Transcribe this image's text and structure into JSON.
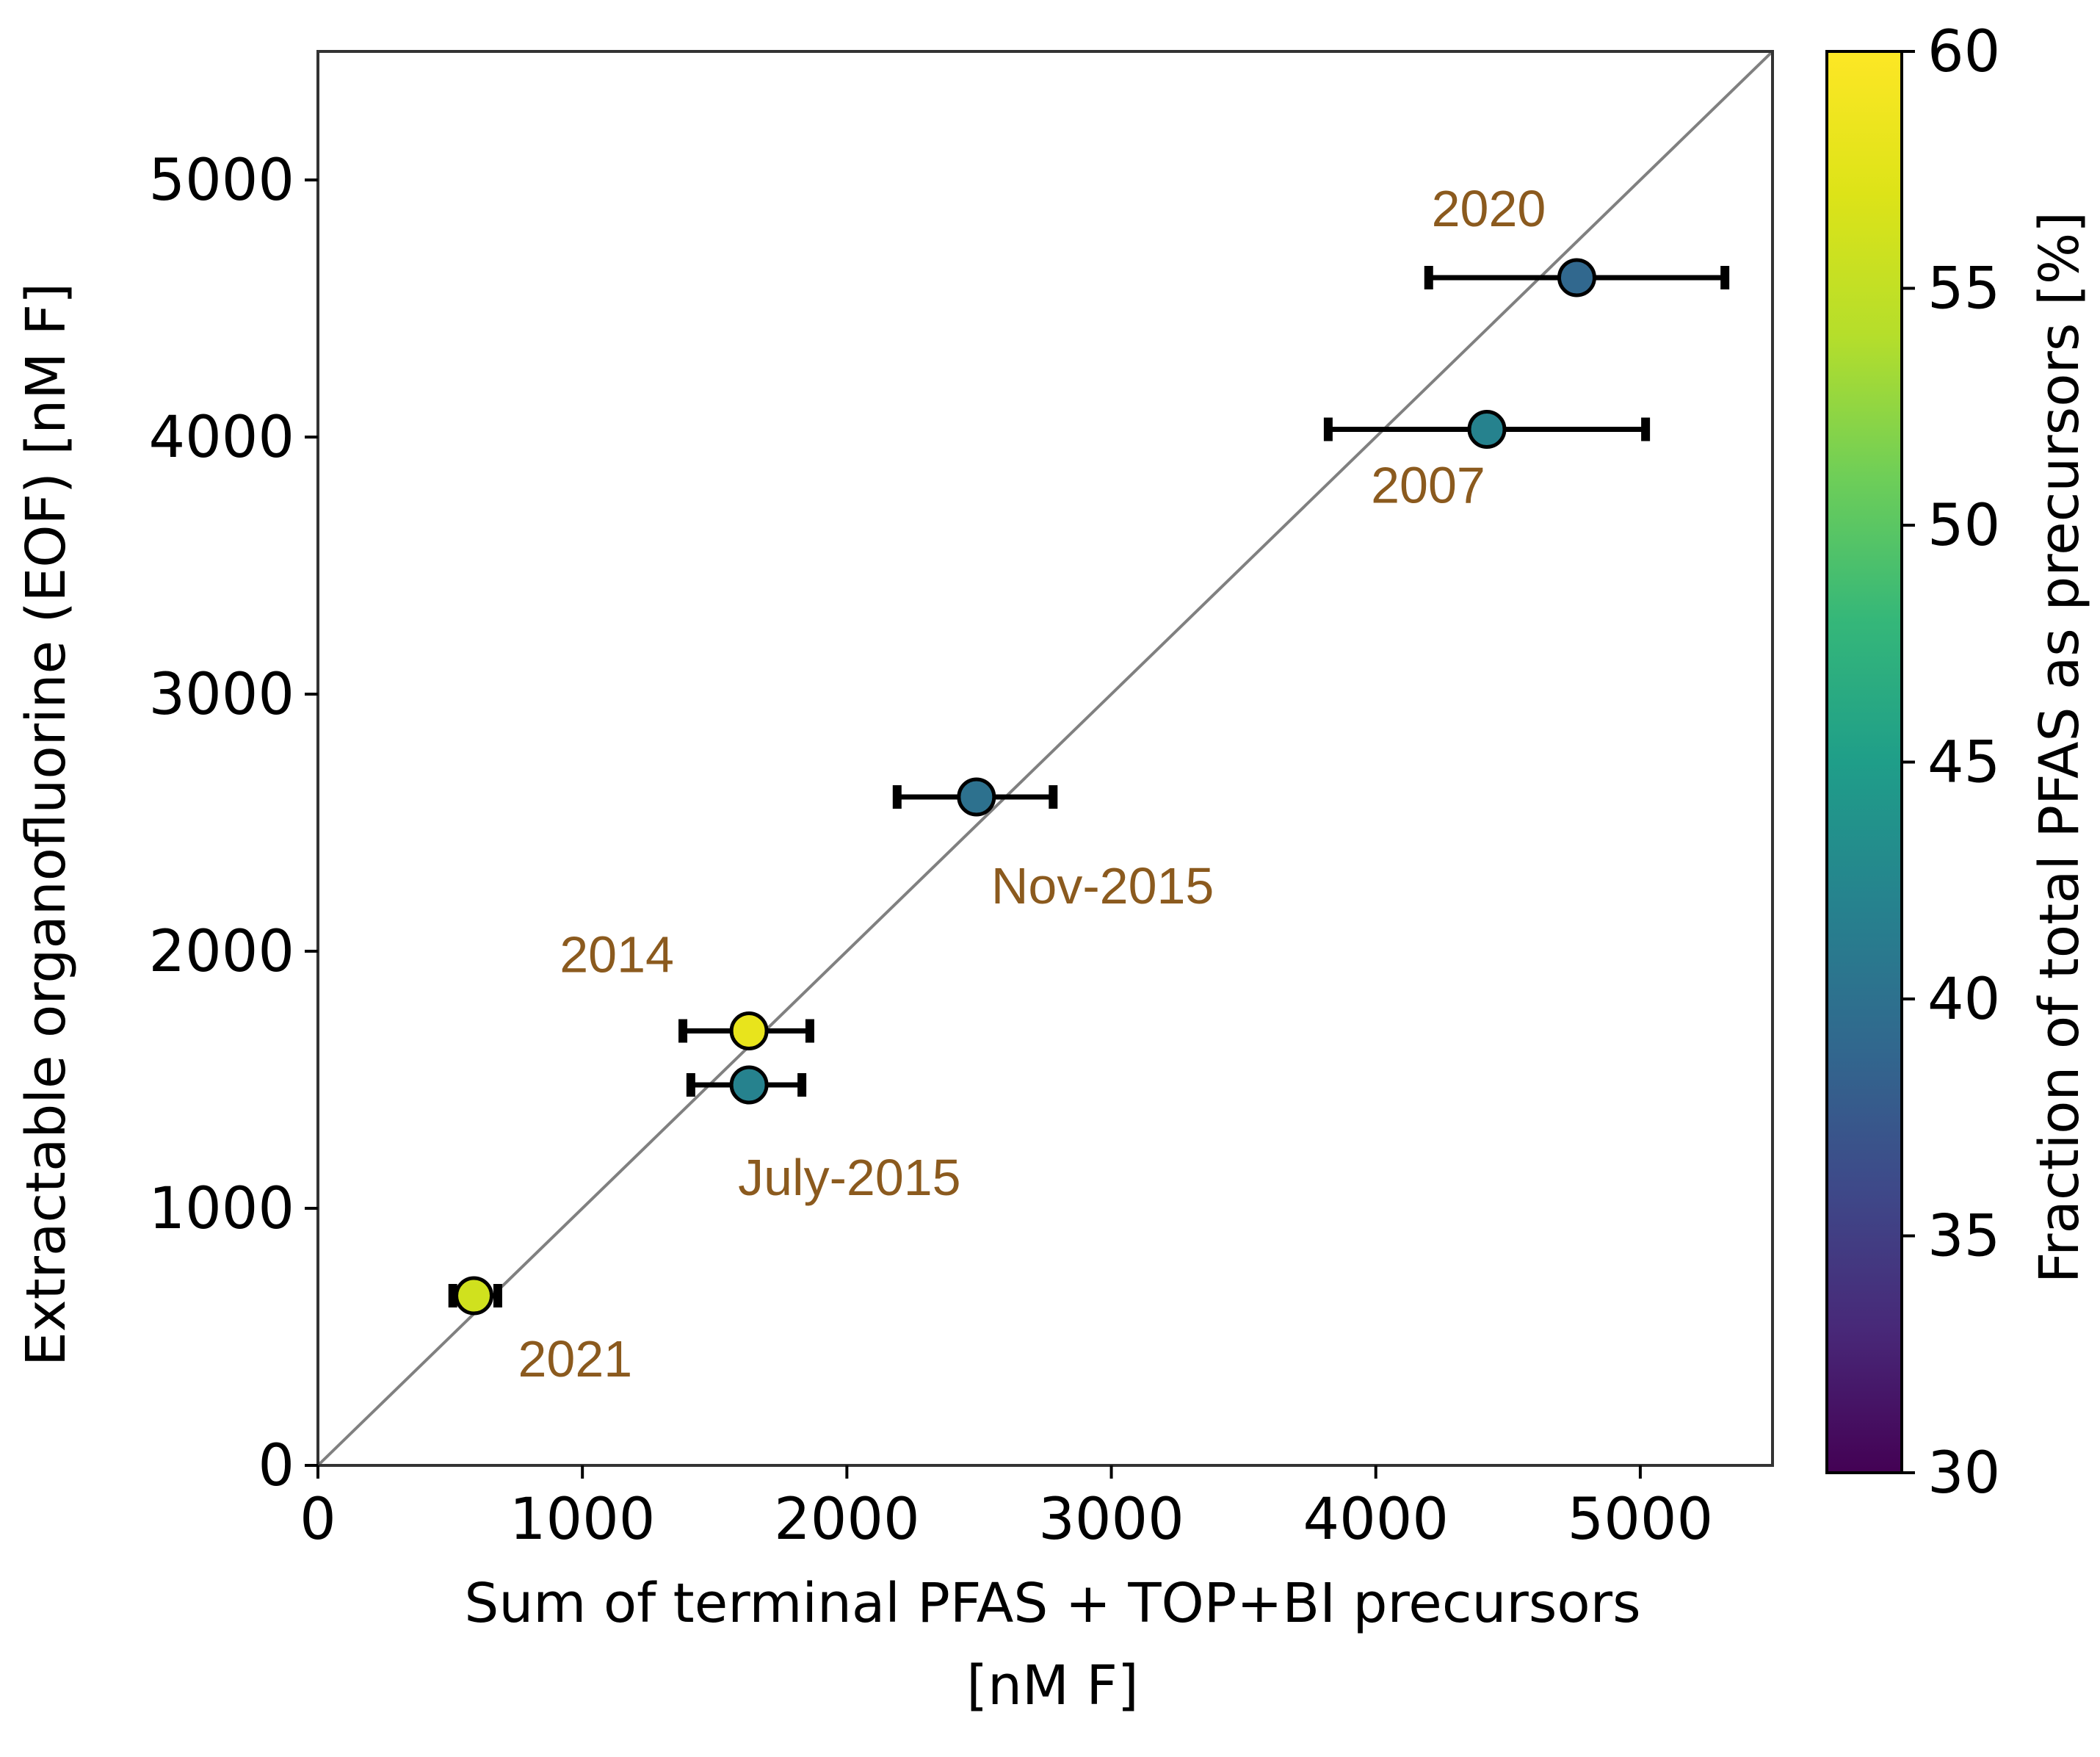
{
  "chart_data": {
    "type": "scatter",
    "xlabel": [
      "Sum of terminal PFAS + TOP+BI precursors",
      "[nM F]"
    ],
    "ylabel": "Extractable organofluorine (EOF) [nM F]",
    "xlim": [
      0,
      5500
    ],
    "ylim": [
      0,
      5500
    ],
    "xticks": [
      0,
      1000,
      2000,
      3000,
      4000,
      5000
    ],
    "yticks": [
      0,
      1000,
      2000,
      3000,
      4000,
      5000
    ],
    "reference_line": {
      "type": "1:1",
      "from": [
        0,
        0
      ],
      "to": [
        5500,
        5500
      ],
      "color": "#808080"
    },
    "colorbar": {
      "label": "Fraction of total PFAS as precursors [%]",
      "min": 30,
      "max": 60,
      "ticks": [
        30,
        35,
        40,
        45,
        50,
        55,
        60
      ],
      "colormap": "viridis"
    },
    "points": [
      {
        "label": "2020",
        "x": 4760,
        "y": 4620,
        "xerr": [
          4200,
          5320
        ],
        "fraction": 39
      },
      {
        "label": "2007",
        "x": 4420,
        "y": 4030,
        "xerr": [
          3820,
          5020
        ],
        "fraction": 42
      },
      {
        "label": "Nov-2015",
        "x": 2490,
        "y": 2600,
        "xerr": [
          2190,
          2780
        ],
        "fraction": 40
      },
      {
        "label": "2014",
        "x": 1630,
        "y": 1690,
        "xerr": [
          1380,
          1860
        ],
        "fraction": 58
      },
      {
        "label": "July-2015",
        "x": 1630,
        "y": 1480,
        "xerr": [
          1410,
          1830
        ],
        "fraction": 42
      },
      {
        "label": "2021",
        "x": 590,
        "y": 660,
        "xerr": [
          510,
          680
        ],
        "fraction": 56
      }
    ]
  }
}
